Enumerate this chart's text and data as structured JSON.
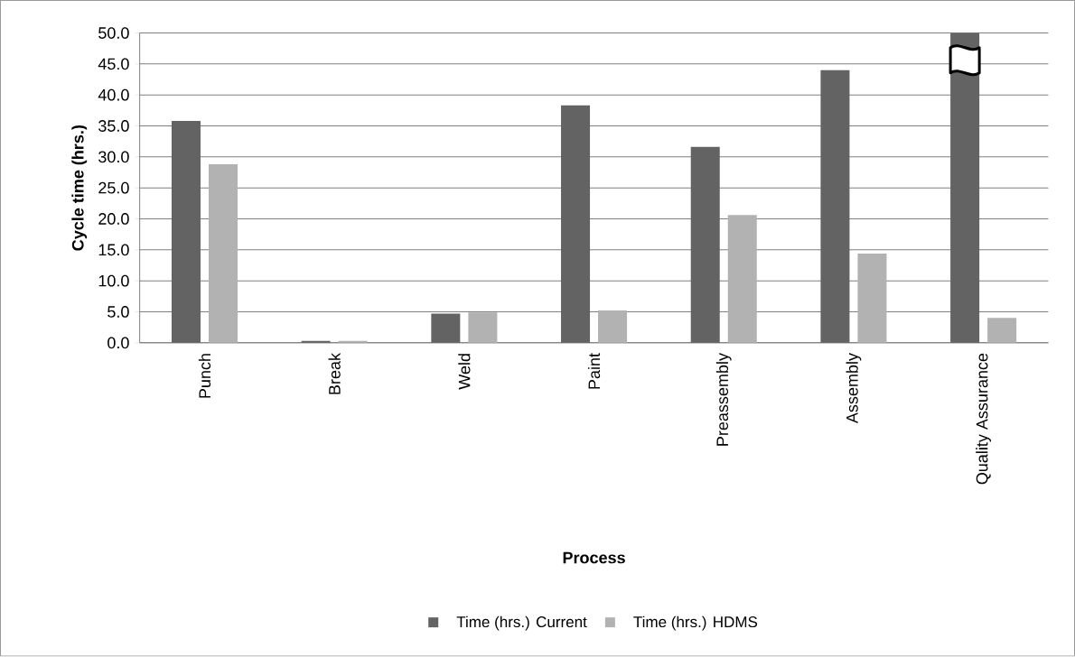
{
  "chart_data": {
    "type": "bar",
    "xlabel": "Process",
    "ylabel": "Cycle time (hrs.)",
    "categories": [
      "Punch",
      "Break",
      "Weld",
      "Paint",
      "Preassembly",
      "Assembly",
      "Quality Assurance"
    ],
    "series": [
      {
        "name": "Time (hrs.) Current",
        "color": "#636363",
        "values": [
          35.8,
          0.3,
          4.7,
          38.3,
          31.6,
          44.0,
          50.0
        ]
      },
      {
        "name": "Time (hrs.) HDMS",
        "color": "#b2b2b2",
        "values": [
          28.8,
          0.3,
          4.9,
          5.2,
          20.6,
          14.4,
          4.0
        ]
      }
    ],
    "ylim": [
      0,
      50
    ],
    "yticks": [
      {
        "value": 0,
        "label": "0.0"
      },
      {
        "value": 5,
        "label": "5.0"
      },
      {
        "value": 10,
        "label": "10.0"
      },
      {
        "value": 15,
        "label": "15.0"
      },
      {
        "value": 20,
        "label": "20.0"
      },
      {
        "value": 25,
        "label": "25.0"
      },
      {
        "value": 30,
        "label": "30.0"
      },
      {
        "value": 35,
        "label": "35.0"
      },
      {
        "value": 40,
        "label": "40.0"
      },
      {
        "value": 45,
        "label": "45.0"
      },
      {
        "value": 50,
        "label": "50.0"
      }
    ],
    "grid": "y",
    "legend": "bottom"
  }
}
